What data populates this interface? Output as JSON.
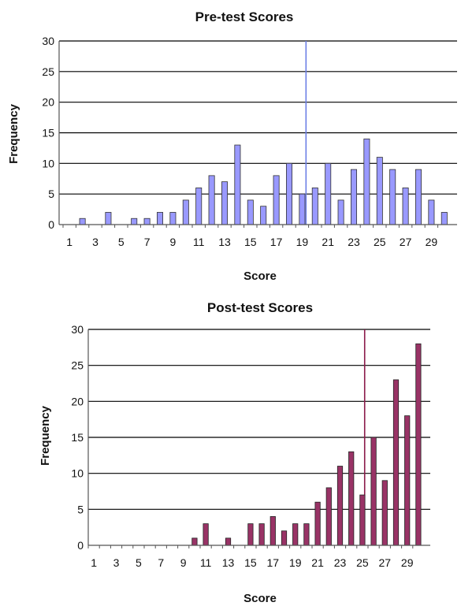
{
  "chart_data": [
    {
      "type": "bar",
      "title": "Pre-test Scores",
      "xlabel": "Score",
      "ylabel": "Frequency",
      "ylim": [
        0,
        30
      ],
      "yticks": [
        0,
        5,
        10,
        15,
        20,
        25,
        30
      ],
      "categories": [
        1,
        2,
        3,
        4,
        5,
        6,
        7,
        8,
        9,
        10,
        11,
        12,
        13,
        14,
        15,
        16,
        17,
        18,
        19,
        20,
        21,
        22,
        23,
        24,
        25,
        26,
        27,
        28,
        29,
        30
      ],
      "xtick_labels": [
        "1",
        "3",
        "5",
        "7",
        "9",
        "11",
        "13",
        "15",
        "17",
        "19",
        "21",
        "23",
        "25",
        "27",
        "29"
      ],
      "values": [
        0,
        1,
        0,
        2,
        0,
        1,
        1,
        2,
        2,
        4,
        6,
        8,
        7,
        13,
        4,
        3,
        8,
        10,
        5,
        6,
        10,
        4,
        9,
        14,
        11,
        9,
        6,
        9,
        4,
        2
      ],
      "reference_line_x": 19.3,
      "colors": {
        "bar_fill": "#9999ff",
        "bar_stroke": "#333333",
        "reference_line": "#6d7fe6",
        "grid": "#000000"
      },
      "grid": true
    },
    {
      "type": "bar",
      "title": "Post-test Scores",
      "xlabel": "Score",
      "ylabel": "Frequency",
      "ylim": [
        0,
        30
      ],
      "yticks": [
        0,
        5,
        10,
        15,
        20,
        25,
        30
      ],
      "categories": [
        1,
        2,
        3,
        4,
        5,
        6,
        7,
        8,
        9,
        10,
        11,
        12,
        13,
        14,
        15,
        16,
        17,
        18,
        19,
        20,
        21,
        22,
        23,
        24,
        25,
        26,
        27,
        28,
        29,
        30
      ],
      "xtick_labels": [
        "1",
        "3",
        "5",
        "7",
        "9",
        "11",
        "13",
        "15",
        "17",
        "19",
        "21",
        "23",
        "25",
        "27",
        "29"
      ],
      "values": [
        0,
        0,
        0,
        0,
        0,
        0,
        0,
        0,
        0,
        1,
        3,
        0,
        1,
        0,
        3,
        3,
        4,
        2,
        3,
        3,
        6,
        8,
        11,
        13,
        7,
        15,
        9,
        23,
        18,
        28
      ],
      "reference_line_x": 25.2,
      "colors": {
        "bar_fill": "#993366",
        "bar_stroke": "#222222",
        "reference_line": "#8b1a4a",
        "grid": "#000000"
      },
      "grid": true
    }
  ]
}
